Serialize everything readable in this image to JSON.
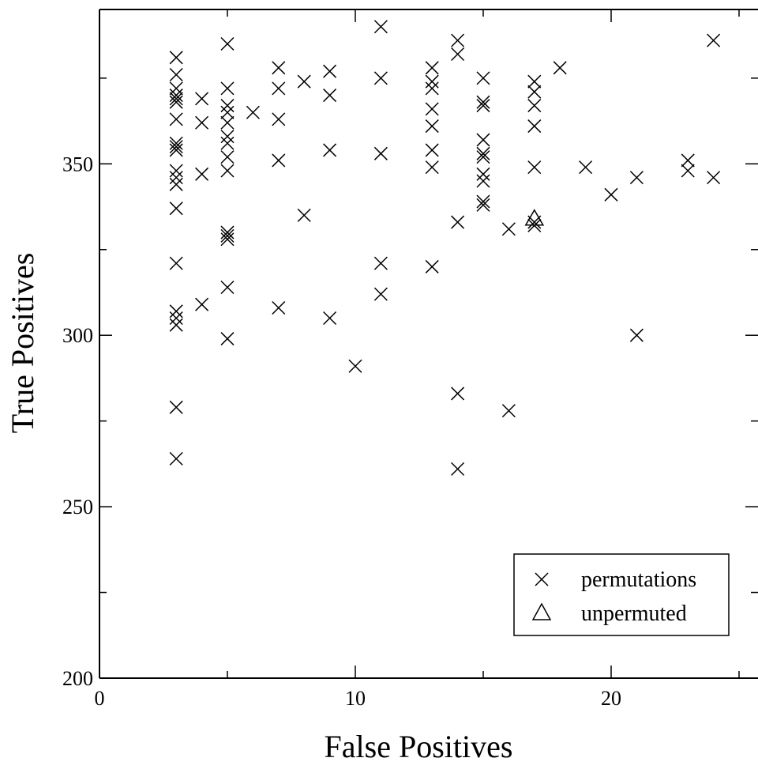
{
  "chart_data": {
    "type": "scatter",
    "title": "",
    "xlabel": "False Positives",
    "ylabel": "True Positives",
    "xlim": [
      0,
      25
    ],
    "ylim": [
      200,
      390
    ],
    "x_ticks": [
      0,
      10,
      20
    ],
    "x_tick_labels": [
      "0",
      "10",
      "20"
    ],
    "x_minor_ticks": [
      5,
      15,
      25
    ],
    "y_ticks": [
      200,
      250,
      300,
      350
    ],
    "y_tick_labels": [
      "200",
      "250",
      "300",
      "350"
    ],
    "y_minor_ticks": [
      225,
      275,
      325,
      375
    ],
    "grid": false,
    "legend_position": "bottom-right",
    "series": [
      {
        "name": "permutations",
        "marker": "x",
        "color": "#000000",
        "points": [
          [
            3,
            381
          ],
          [
            3,
            376
          ],
          [
            3,
            372
          ],
          [
            3,
            370
          ],
          [
            3,
            369
          ],
          [
            3,
            368
          ],
          [
            3,
            363
          ],
          [
            3,
            356
          ],
          [
            3,
            355
          ],
          [
            3,
            354
          ],
          [
            3,
            348
          ],
          [
            3,
            346
          ],
          [
            3,
            344
          ],
          [
            3,
            337
          ],
          [
            3,
            321
          ],
          [
            3,
            307
          ],
          [
            3,
            305
          ],
          [
            3,
            303
          ],
          [
            3,
            279
          ],
          [
            3,
            264
          ],
          [
            4,
            369
          ],
          [
            4,
            362
          ],
          [
            4,
            347
          ],
          [
            4,
            309
          ],
          [
            5,
            385
          ],
          [
            5,
            372
          ],
          [
            5,
            367
          ],
          [
            5,
            365
          ],
          [
            5,
            362
          ],
          [
            5,
            358
          ],
          [
            5,
            356
          ],
          [
            5,
            352
          ],
          [
            5,
            348
          ],
          [
            5,
            330
          ],
          [
            5,
            329
          ],
          [
            5,
            328
          ],
          [
            5,
            314
          ],
          [
            5,
            299
          ],
          [
            6,
            365
          ],
          [
            7,
            378
          ],
          [
            7,
            372
          ],
          [
            7,
            363
          ],
          [
            7,
            351
          ],
          [
            7,
            308
          ],
          [
            8,
            374
          ],
          [
            8,
            335
          ],
          [
            9,
            377
          ],
          [
            9,
            370
          ],
          [
            9,
            354
          ],
          [
            9,
            305
          ],
          [
            10,
            291
          ],
          [
            11,
            390
          ],
          [
            11,
            375
          ],
          [
            11,
            353
          ],
          [
            11,
            321
          ],
          [
            11,
            312
          ],
          [
            13,
            378
          ],
          [
            13,
            374
          ],
          [
            13,
            372
          ],
          [
            13,
            366
          ],
          [
            13,
            361
          ],
          [
            13,
            354
          ],
          [
            13,
            349
          ],
          [
            13,
            320
          ],
          [
            14,
            386
          ],
          [
            14,
            382
          ],
          [
            14,
            333
          ],
          [
            14,
            283
          ],
          [
            14,
            261
          ],
          [
            15,
            375
          ],
          [
            15,
            368
          ],
          [
            15,
            367
          ],
          [
            15,
            357
          ],
          [
            15,
            353
          ],
          [
            15,
            352
          ],
          [
            15,
            347
          ],
          [
            15,
            345
          ],
          [
            15,
            339
          ],
          [
            15,
            338
          ],
          [
            16,
            331
          ],
          [
            16,
            278
          ],
          [
            17,
            374
          ],
          [
            17,
            371
          ],
          [
            17,
            367
          ],
          [
            17,
            361
          ],
          [
            17,
            349
          ],
          [
            17,
            333
          ],
          [
            17,
            332
          ],
          [
            18,
            378
          ],
          [
            19,
            349
          ],
          [
            20,
            341
          ],
          [
            21,
            346
          ],
          [
            21,
            300
          ],
          [
            23,
            351
          ],
          [
            23,
            348
          ],
          [
            24,
            386
          ],
          [
            24,
            346
          ]
        ]
      },
      {
        "name": "unpermuted",
        "marker": "triangle",
        "color": "#000000",
        "points": [
          [
            17,
            334
          ]
        ]
      }
    ]
  }
}
